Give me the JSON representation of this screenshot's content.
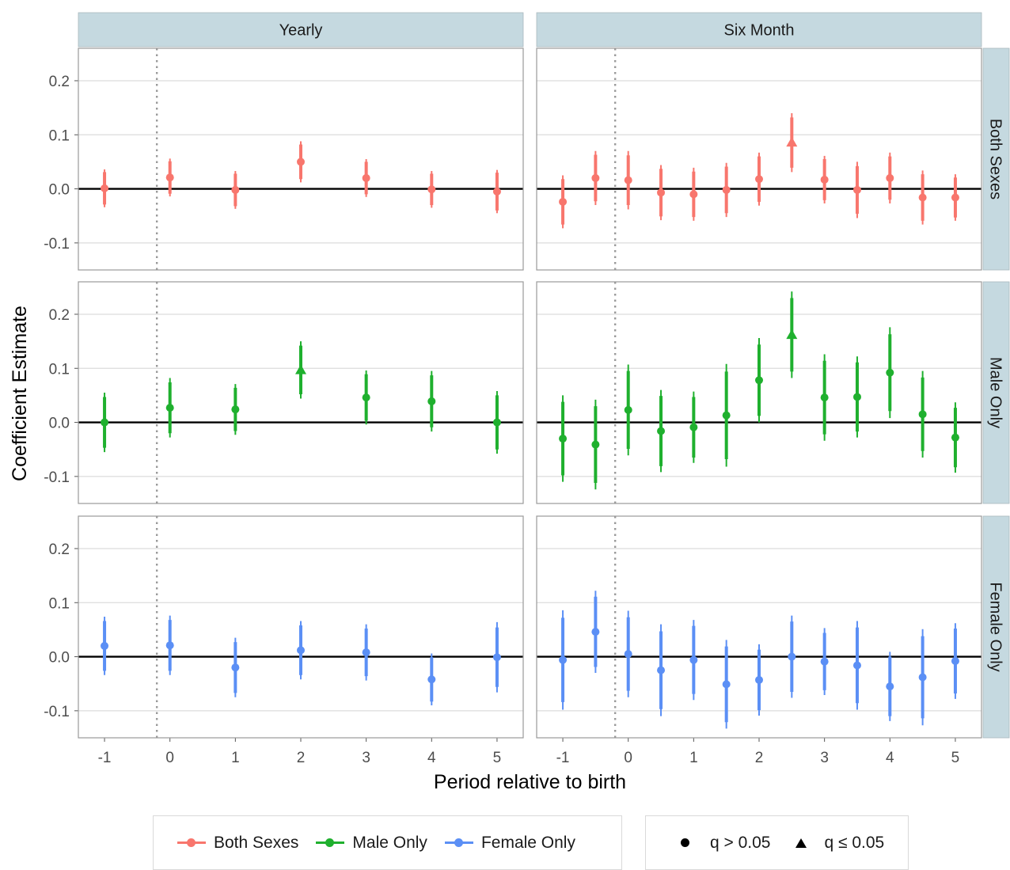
{
  "chart_data": {
    "type": "scatter",
    "subtype": "coefficient plot with error bars, faceted grid",
    "ylabel": "Coefficient Estimate",
    "xlabel": "Period relative to birth",
    "ylim": [
      -0.15,
      0.26
    ],
    "y_ticks": [
      -0.1,
      0.0,
      0.1,
      0.2
    ],
    "y_tick_labels": [
      "-0.1",
      "0.0",
      "0.1",
      "0.2"
    ],
    "x_ticks": [
      -1,
      0,
      1,
      2,
      3,
      4,
      5
    ],
    "x_tick_labels": [
      "-1",
      "0",
      "1",
      "2",
      "3",
      "4",
      "5"
    ],
    "reference_lines": {
      "horizontal_y": 0,
      "vertical_dotted_x": -0.2
    },
    "grid": true,
    "columns": [
      "Yearly",
      "Six Month"
    ],
    "rows": [
      "Both Sexes",
      "Male Only",
      "Female Only"
    ],
    "colors": {
      "Both Sexes": "#F8766D",
      "Male Only": "#1FB02E",
      "Female Only": "#5B8FF5"
    },
    "panels": [
      {
        "column": "Yearly",
        "row": "Both Sexes",
        "points": [
          {
            "x": -1,
            "y": 0.001,
            "ci95": [
              -0.034,
              0.036
            ],
            "ci90": [
              -0.029,
              0.031
            ],
            "sig": false
          },
          {
            "x": 0,
            "y": 0.021,
            "ci95": [
              -0.014,
              0.056
            ],
            "ci90": [
              -0.009,
              0.051
            ],
            "sig": false
          },
          {
            "x": 1,
            "y": -0.002,
            "ci95": [
              -0.037,
              0.033
            ],
            "ci90": [
              -0.032,
              0.028
            ],
            "sig": false
          },
          {
            "x": 2,
            "y": 0.05,
            "ci95": [
              0.012,
              0.088
            ],
            "ci90": [
              0.018,
              0.082
            ],
            "sig": false
          },
          {
            "x": 3,
            "y": 0.02,
            "ci95": [
              -0.015,
              0.055
            ],
            "ci90": [
              -0.01,
              0.05
            ],
            "sig": false
          },
          {
            "x": 4,
            "y": -0.001,
            "ci95": [
              -0.035,
              0.033
            ],
            "ci90": [
              -0.03,
              0.028
            ],
            "sig": false
          },
          {
            "x": 5,
            "y": -0.005,
            "ci95": [
              -0.045,
              0.035
            ],
            "ci90": [
              -0.04,
              0.03
            ],
            "sig": false
          }
        ]
      },
      {
        "column": "Six Month",
        "row": "Both Sexes",
        "points": [
          {
            "x": -1,
            "y": -0.024,
            "ci95": [
              -0.073,
              0.025
            ],
            "ci90": [
              -0.066,
              0.018
            ],
            "sig": false
          },
          {
            "x": -0.5,
            "y": 0.02,
            "ci95": [
              -0.03,
              0.07
            ],
            "ci90": [
              -0.023,
              0.063
            ],
            "sig": false
          },
          {
            "x": 0,
            "y": 0.016,
            "ci95": [
              -0.038,
              0.07
            ],
            "ci90": [
              -0.03,
              0.062
            ],
            "sig": false
          },
          {
            "x": 0.5,
            "y": -0.007,
            "ci95": [
              -0.058,
              0.044
            ],
            "ci90": [
              -0.051,
              0.037
            ],
            "sig": false
          },
          {
            "x": 1,
            "y": -0.01,
            "ci95": [
              -0.059,
              0.039
            ],
            "ci90": [
              -0.052,
              0.032
            ],
            "sig": false
          },
          {
            "x": 1.5,
            "y": -0.002,
            "ci95": [
              -0.052,
              0.048
            ],
            "ci90": [
              -0.045,
              0.041
            ],
            "sig": false
          },
          {
            "x": 2,
            "y": 0.018,
            "ci95": [
              -0.031,
              0.067
            ],
            "ci90": [
              -0.024,
              0.06
            ],
            "sig": false
          },
          {
            "x": 2.5,
            "y": 0.086,
            "ci95": [
              0.031,
              0.14
            ],
            "ci90": [
              0.039,
              0.132
            ],
            "sig": true
          },
          {
            "x": 3,
            "y": 0.017,
            "ci95": [
              -0.027,
              0.061
            ],
            "ci90": [
              -0.021,
              0.055
            ],
            "sig": false
          },
          {
            "x": 3.5,
            "y": -0.002,
            "ci95": [
              -0.054,
              0.05
            ],
            "ci90": [
              -0.046,
              0.042
            ],
            "sig": false
          },
          {
            "x": 4,
            "y": 0.02,
            "ci95": [
              -0.027,
              0.067
            ],
            "ci90": [
              -0.02,
              0.06
            ],
            "sig": false
          },
          {
            "x": 4.5,
            "y": -0.016,
            "ci95": [
              -0.066,
              0.034
            ],
            "ci90": [
              -0.059,
              0.027
            ],
            "sig": false
          },
          {
            "x": 5,
            "y": -0.016,
            "ci95": [
              -0.059,
              0.027
            ],
            "ci90": [
              -0.053,
              0.021
            ],
            "sig": false
          }
        ]
      },
      {
        "column": "Yearly",
        "row": "Male Only",
        "points": [
          {
            "x": -1,
            "y": 0.0,
            "ci95": [
              -0.055,
              0.055
            ],
            "ci90": [
              -0.047,
              0.047
            ],
            "sig": false
          },
          {
            "x": 0,
            "y": 0.027,
            "ci95": [
              -0.028,
              0.082
            ],
            "ci90": [
              -0.02,
              0.074
            ],
            "sig": false
          },
          {
            "x": 1,
            "y": 0.024,
            "ci95": [
              -0.023,
              0.071
            ],
            "ci90": [
              -0.016,
              0.064
            ],
            "sig": false
          },
          {
            "x": 2,
            "y": 0.097,
            "ci95": [
              0.044,
              0.15
            ],
            "ci90": [
              0.052,
              0.142
            ],
            "sig": true
          },
          {
            "x": 3,
            "y": 0.046,
            "ci95": [
              -0.004,
              0.096
            ],
            "ci90": [
              0.003,
              0.089
            ],
            "sig": false
          },
          {
            "x": 4,
            "y": 0.039,
            "ci95": [
              -0.017,
              0.095
            ],
            "ci90": [
              -0.009,
              0.087
            ],
            "sig": false
          },
          {
            "x": 5,
            "y": 0.0,
            "ci95": [
              -0.058,
              0.058
            ],
            "ci90": [
              -0.05,
              0.05
            ],
            "sig": false
          }
        ]
      },
      {
        "column": "Six Month",
        "row": "Male Only",
        "points": [
          {
            "x": -1,
            "y": -0.03,
            "ci95": [
              -0.11,
              0.05
            ],
            "ci90": [
              -0.098,
              0.038
            ],
            "sig": false
          },
          {
            "x": -0.5,
            "y": -0.041,
            "ci95": [
              -0.124,
              0.042
            ],
            "ci90": [
              -0.112,
              0.03
            ],
            "sig": false
          },
          {
            "x": 0,
            "y": 0.023,
            "ci95": [
              -0.061,
              0.107
            ],
            "ci90": [
              -0.049,
              0.095
            ],
            "sig": false
          },
          {
            "x": 0.5,
            "y": -0.016,
            "ci95": [
              -0.092,
              0.06
            ],
            "ci90": [
              -0.081,
              0.049
            ],
            "sig": false
          },
          {
            "x": 1,
            "y": -0.009,
            "ci95": [
              -0.075,
              0.057
            ],
            "ci90": [
              -0.065,
              0.047
            ],
            "sig": false
          },
          {
            "x": 1.5,
            "y": 0.013,
            "ci95": [
              -0.082,
              0.108
            ],
            "ci90": [
              -0.068,
              0.094
            ],
            "sig": false
          },
          {
            "x": 2,
            "y": 0.078,
            "ci95": [
              0.0,
              0.156
            ],
            "ci90": [
              0.012,
              0.144
            ],
            "sig": false
          },
          {
            "x": 2.5,
            "y": 0.162,
            "ci95": [
              0.082,
              0.242
            ],
            "ci90": [
              0.094,
              0.23
            ],
            "sig": true
          },
          {
            "x": 3,
            "y": 0.046,
            "ci95": [
              -0.034,
              0.126
            ],
            "ci90": [
              -0.022,
              0.114
            ],
            "sig": false
          },
          {
            "x": 3.5,
            "y": 0.047,
            "ci95": [
              -0.028,
              0.122
            ],
            "ci90": [
              -0.017,
              0.111
            ],
            "sig": false
          },
          {
            "x": 4,
            "y": 0.092,
            "ci95": [
              0.008,
              0.176
            ],
            "ci90": [
              0.021,
              0.163
            ],
            "sig": false
          },
          {
            "x": 4.5,
            "y": 0.015,
            "ci95": [
              -0.065,
              0.095
            ],
            "ci90": [
              -0.053,
              0.083
            ],
            "sig": false
          },
          {
            "x": 5,
            "y": -0.028,
            "ci95": [
              -0.093,
              0.037
            ],
            "ci90": [
              -0.083,
              0.027
            ],
            "sig": false
          }
        ]
      },
      {
        "column": "Yearly",
        "row": "Female Only",
        "points": [
          {
            "x": -1,
            "y": 0.02,
            "ci95": [
              -0.034,
              0.074
            ],
            "ci90": [
              -0.026,
              0.066
            ],
            "sig": false
          },
          {
            "x": 0,
            "y": 0.021,
            "ci95": [
              -0.034,
              0.076
            ],
            "ci90": [
              -0.026,
              0.068
            ],
            "sig": false
          },
          {
            "x": 1,
            "y": -0.02,
            "ci95": [
              -0.075,
              0.035
            ],
            "ci90": [
              -0.067,
              0.027
            ],
            "sig": false
          },
          {
            "x": 2,
            "y": 0.012,
            "ci95": [
              -0.042,
              0.066
            ],
            "ci90": [
              -0.034,
              0.058
            ],
            "sig": false
          },
          {
            "x": 3,
            "y": 0.008,
            "ci95": [
              -0.044,
              0.06
            ],
            "ci90": [
              -0.036,
              0.052
            ],
            "sig": false
          },
          {
            "x": 4,
            "y": -0.042,
            "ci95": [
              -0.09,
              0.006
            ],
            "ci90": [
              -0.083,
              -0.001
            ],
            "sig": false
          },
          {
            "x": 5,
            "y": -0.001,
            "ci95": [
              -0.066,
              0.064
            ],
            "ci90": [
              -0.056,
              0.054
            ],
            "sig": false
          }
        ]
      },
      {
        "column": "Six Month",
        "row": "Female Only",
        "points": [
          {
            "x": -1,
            "y": -0.006,
            "ci95": [
              -0.098,
              0.086
            ],
            "ci90": [
              -0.084,
              0.072
            ],
            "sig": false
          },
          {
            "x": -0.5,
            "y": 0.046,
            "ci95": [
              -0.03,
              0.122
            ],
            "ci90": [
              -0.019,
              0.111
            ],
            "sig": false
          },
          {
            "x": 0,
            "y": 0.005,
            "ci95": [
              -0.075,
              0.085
            ],
            "ci90": [
              -0.063,
              0.073
            ],
            "sig": false
          },
          {
            "x": 0.5,
            "y": -0.025,
            "ci95": [
              -0.11,
              0.06
            ],
            "ci90": [
              -0.097,
              0.047
            ],
            "sig": false
          },
          {
            "x": 1,
            "y": -0.006,
            "ci95": [
              -0.08,
              0.068
            ],
            "ci90": [
              -0.069,
              0.057
            ],
            "sig": false
          },
          {
            "x": 1.5,
            "y": -0.051,
            "ci95": [
              -0.133,
              0.031
            ],
            "ci90": [
              -0.121,
              0.019
            ],
            "sig": false
          },
          {
            "x": 2,
            "y": -0.043,
            "ci95": [
              -0.109,
              0.023
            ],
            "ci90": [
              -0.099,
              0.013
            ],
            "sig": false
          },
          {
            "x": 2.5,
            "y": 0.0,
            "ci95": [
              -0.076,
              0.076
            ],
            "ci90": [
              -0.065,
              0.065
            ],
            "sig": false
          },
          {
            "x": 3,
            "y": -0.009,
            "ci95": [
              -0.071,
              0.053
            ],
            "ci90": [
              -0.062,
              0.044
            ],
            "sig": false
          },
          {
            "x": 3.5,
            "y": -0.016,
            "ci95": [
              -0.098,
              0.066
            ],
            "ci90": [
              -0.086,
              0.054
            ],
            "sig": false
          },
          {
            "x": 4,
            "y": -0.055,
            "ci95": [
              -0.119,
              0.009
            ],
            "ci90": [
              -0.11,
              0.0
            ],
            "sig": false
          },
          {
            "x": 4.5,
            "y": -0.038,
            "ci95": [
              -0.127,
              0.051
            ],
            "ci90": [
              -0.114,
              0.038
            ],
            "sig": false
          },
          {
            "x": 5,
            "y": -0.008,
            "ci95": [
              -0.078,
              0.062
            ],
            "ci90": [
              -0.068,
              0.052
            ],
            "sig": false
          }
        ]
      }
    ]
  },
  "legend": {
    "series": [
      {
        "label": "Both Sexes",
        "color": "#F8766D"
      },
      {
        "label": "Male Only",
        "color": "#1FB02E"
      },
      {
        "label": "Female Only",
        "color": "#5B8FF5"
      }
    ],
    "shapes": [
      {
        "label": "q > 0.05",
        "shape": "circle"
      },
      {
        "label": "q ≤ 0.05",
        "shape": "triangle"
      }
    ]
  }
}
